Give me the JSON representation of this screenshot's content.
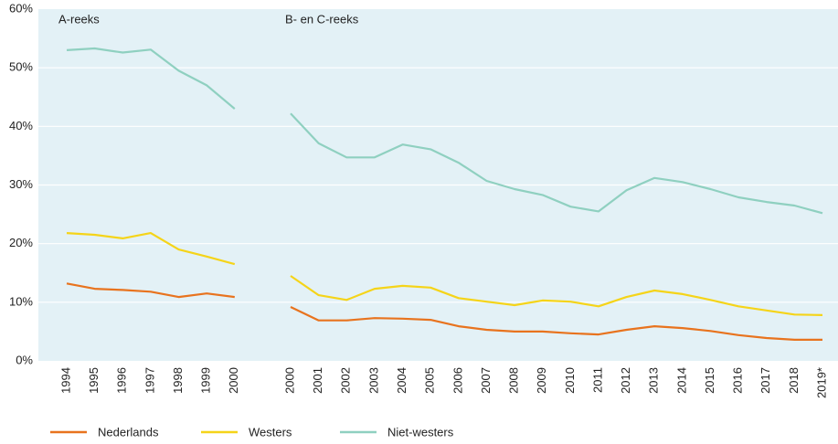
{
  "chart_data": {
    "type": "line",
    "annotations": [
      "A-reeks",
      "B- en C-reeks"
    ],
    "categories": [
      "1994",
      "1995",
      "1996",
      "1997",
      "1998",
      "1999",
      "2000",
      null,
      "2000",
      "2001",
      "2002",
      "2003",
      "2004",
      "2005",
      "2006",
      "2007",
      "2008",
      "2009",
      "2010",
      "2011",
      "2012",
      "2013",
      "2014",
      "2015",
      "2016",
      "2017",
      "2018",
      "2019*"
    ],
    "series": [
      {
        "name": "Nederlands",
        "color": "#e8731e",
        "values": [
          13.2,
          12.3,
          12.1,
          11.8,
          10.9,
          11.5,
          10.9,
          null,
          9.2,
          6.9,
          6.9,
          7.3,
          7.2,
          7.0,
          5.9,
          5.3,
          5.0,
          5.0,
          4.7,
          4.5,
          5.3,
          5.9,
          5.6,
          5.1,
          4.4,
          3.9,
          3.6,
          3.6
        ]
      },
      {
        "name": "Westers",
        "color": "#f5d419",
        "values": [
          21.8,
          21.5,
          20.9,
          21.8,
          19.0,
          17.8,
          16.5,
          null,
          14.5,
          11.2,
          10.4,
          12.3,
          12.8,
          12.5,
          10.7,
          10.1,
          9.5,
          10.3,
          10.1,
          9.3,
          10.9,
          12.0,
          11.4,
          10.4,
          9.3,
          8.6,
          7.9,
          7.8
        ]
      },
      {
        "name": "Niet-westers",
        "color": "#8fd0c0",
        "values": [
          53.0,
          53.3,
          52.6,
          53.1,
          49.5,
          47.0,
          43.0,
          null,
          42.2,
          37.1,
          34.7,
          34.7,
          36.9,
          36.1,
          33.8,
          30.7,
          29.3,
          28.3,
          26.3,
          25.5,
          29.1,
          31.2,
          30.5,
          29.3,
          27.9,
          27.1,
          26.5,
          25.2
        ]
      }
    ],
    "ylim": [
      0,
      60
    ],
    "yticks": [
      {
        "value": 0,
        "label": "0%"
      },
      {
        "value": 10,
        "label": "10%"
      },
      {
        "value": 20,
        "label": "20%"
      },
      {
        "value": 30,
        "label": "30%"
      },
      {
        "value": 40,
        "label": "40%"
      },
      {
        "value": 50,
        "label": "50%"
      },
      {
        "value": 60,
        "label": "60%"
      }
    ],
    "grid": true
  }
}
